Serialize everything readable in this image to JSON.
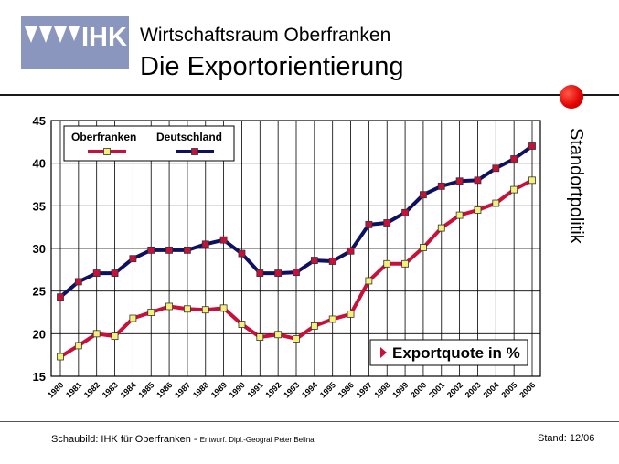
{
  "header": {
    "logo_text": "IHK",
    "title_line1": "Wirtschaftsraum Oberfranken",
    "title_line2": "Die Exportorientierung"
  },
  "side_label": "Standortpolitik",
  "footer": {
    "source_main": "Schaubild: IHK für Oberfranken - ",
    "source_small": "Entwurf. Dipl.-Geograf Peter Belina",
    "stand": "Stand: 12/06"
  },
  "colors": {
    "oberfranken_line": "#c8103a",
    "oberfranken_marker": "#f5f07a",
    "deutschland_line": "#101060",
    "deutschland_marker": "#c8103a",
    "accent_dot": "#e00000"
  },
  "chart_data": {
    "type": "line",
    "title": "",
    "xlabel": "",
    "ylabel": "",
    "categories": [
      "1980",
      "1981",
      "1982",
      "1983",
      "1984",
      "1985",
      "1986",
      "1987",
      "1988",
      "1989",
      "1990",
      "1991",
      "1992",
      "1993",
      "1994",
      "1995",
      "1996",
      "1997",
      "1998",
      "1999",
      "2000",
      "2001",
      "2002",
      "2003",
      "2004",
      "2005",
      "2006"
    ],
    "ylim": [
      15,
      45
    ],
    "yticks": [
      15,
      20,
      25,
      30,
      35,
      40,
      45
    ],
    "grid": true,
    "legend_position": "top-left",
    "series": [
      {
        "name": "Oberfranken",
        "values": [
          17.3,
          18.6,
          20.0,
          19.7,
          21.8,
          22.5,
          23.2,
          22.9,
          22.8,
          23.0,
          21.1,
          19.6,
          19.9,
          19.4,
          20.9,
          21.7,
          22.3,
          26.2,
          28.2,
          28.2,
          30.1,
          32.4,
          33.9,
          34.5,
          35.3,
          36.9,
          38.0
        ]
      },
      {
        "name": "Deutschland",
        "values": [
          24.3,
          26.1,
          27.1,
          27.1,
          28.8,
          29.8,
          29.8,
          29.8,
          30.5,
          31.0,
          29.4,
          27.1,
          27.1,
          27.2,
          28.6,
          28.5,
          29.7,
          32.8,
          33.0,
          34.2,
          36.3,
          37.3,
          37.9,
          38.0,
          39.4,
          40.5,
          42.0
        ]
      }
    ],
    "annotation": "Exportquote in %"
  }
}
